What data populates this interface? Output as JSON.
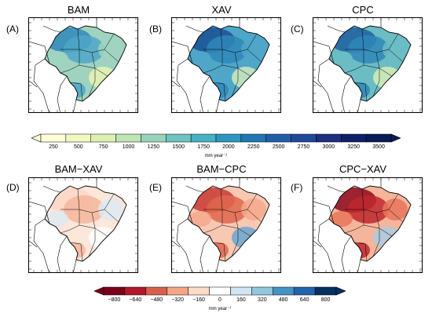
{
  "top_row": {
    "panels": [
      {
        "letter": "(A)",
        "title": "BAM",
        "fills": [
          "#2f87b8",
          "#4fa6c8",
          "#9fd3c0",
          "#e8f3b4"
        ],
        "base": "#9fd3c0"
      },
      {
        "letter": "(B)",
        "title": "XAV",
        "fills": [
          "#1a4f93",
          "#2f87b8",
          "#4fa6c8",
          "#cfe9bd"
        ],
        "base": "#4fa6c8"
      },
      {
        "letter": "(C)",
        "title": "CPC",
        "fills": [
          "#1f5fa0",
          "#2f87b8",
          "#6bbcc4",
          "#d7edb6"
        ],
        "base": "#6bbcc4"
      }
    ],
    "colorbar": {
      "ticks": [
        "250",
        "500",
        "750",
        "1000",
        "1250",
        "1500",
        "1750",
        "2000",
        "2250",
        "2500",
        "2750",
        "3000",
        "3250",
        "3500"
      ],
      "colors": [
        "#ffffd9",
        "#f2f9c0",
        "#ddf0b3",
        "#bfe4b5",
        "#97d4bb",
        "#6cc3c0",
        "#45b1c2",
        "#2b97c0",
        "#2077b4",
        "#225ea8",
        "#23479b",
        "#1c2f80",
        "#0d2169",
        "#081d58"
      ],
      "unit": "mm year⁻¹"
    }
  },
  "bottom_row": {
    "panels": [
      {
        "letter": "(D)",
        "title": "BAM−XAV",
        "fills": [
          "#fbd6c4",
          "#f4b59b",
          "#dde9f2",
          "#ffffff"
        ],
        "base": "#fde6da"
      },
      {
        "letter": "(E)",
        "title": "BAM−CPC",
        "fills": [
          "#c83a32",
          "#e0664e",
          "#f4a98b",
          "#6aa6d1"
        ],
        "base": "#f8c8b3"
      },
      {
        "letter": "(F)",
        "title": "CPC−XAV",
        "fills": [
          "#8b0a1d",
          "#c0272d",
          "#e8765c",
          "#a9cce3"
        ],
        "base": "#f4b59b"
      }
    ],
    "colorbar": {
      "ticks": [
        "−800",
        "−640",
        "−480",
        "−320",
        "−160",
        "0",
        "160",
        "320",
        "480",
        "640",
        "800"
      ],
      "colors": [
        "#7a0019",
        "#b2182b",
        "#d6604d",
        "#f4a582",
        "#fddbc7",
        "#ffffff",
        "#d1e5f0",
        "#92c5de",
        "#4393c3",
        "#2166ac",
        "#053061"
      ],
      "unit": "mm year⁻¹"
    }
  }
}
